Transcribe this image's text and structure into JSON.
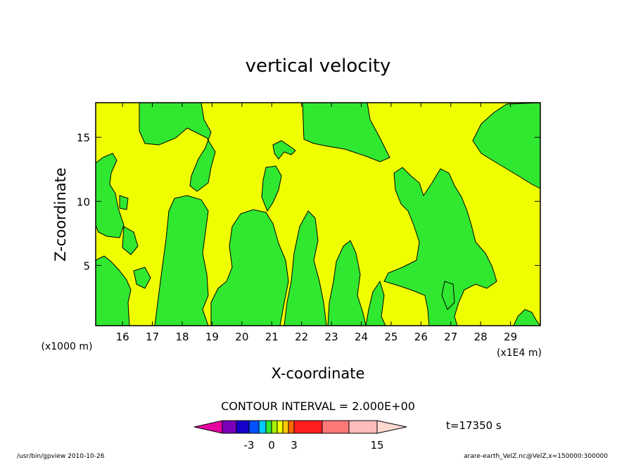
{
  "chart_data": {
    "type": "heatmap",
    "title": "vertical velocity",
    "xlabel": "X-coordinate",
    "ylabel": "Z-coordinate",
    "x_unit_label": "(x1000 m)",
    "x_scale_label": "(x1E4 m)",
    "x_ticks": [
      "16",
      "17",
      "18",
      "19",
      "20",
      "21",
      "22",
      "23",
      "24",
      "25",
      "26",
      "27",
      "28",
      "29"
    ],
    "y_ticks": [
      "5",
      "10",
      "15"
    ],
    "xlim": [
      15.1,
      30.0
    ],
    "ylim": [
      0.3,
      17.7
    ],
    "contour_label": "CONTOUR INTERVAL = 2.000E+00",
    "time_label": "t=17350 s",
    "colorbar_ticks": [
      {
        "label": "-3",
        "index": 3
      },
      {
        "label": "0",
        "index": 4.5
      },
      {
        "label": "3",
        "index": 6
      },
      {
        "label": "15",
        "index": 11
      }
    ],
    "colorbar_colors": [
      "#e6009f",
      "#7a00b7",
      "#1400c8",
      "#0050ff",
      "#00c8ff",
      "#30e830",
      "#a8f000",
      "#f0ff00",
      "#ffc800",
      "#ff6a00",
      "#ff1e1e",
      "#ff7878",
      "#ffbcbc",
      "#ffd8d0"
    ],
    "fill_colors": {
      "background": "#f0ff00",
      "positive_region": "#30e830"
    }
  },
  "footer": {
    "left": "/usr/bin/gpview   2010-10-26",
    "right": "arare-earth_VelZ.nc@VelZ,x=150000:300000"
  }
}
